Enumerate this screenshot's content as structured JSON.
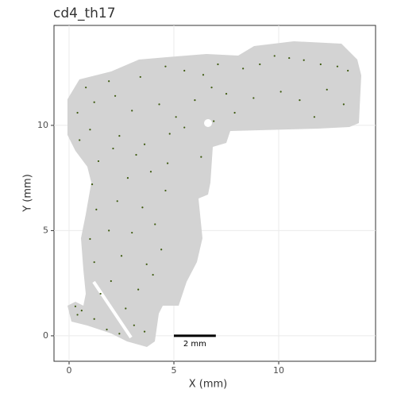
{
  "chart_data": {
    "type": "scatter",
    "title": "cd4_th17",
    "x_label": "X (mm)",
    "y_label": "Y (mm)",
    "xlim": [
      -0.72,
      14.62
    ],
    "ylim": [
      -1.21,
      14.75
    ],
    "xticks": [
      0,
      5,
      10
    ],
    "yticks": [
      0,
      5,
      10
    ],
    "grid": true,
    "scale_bar": {
      "label": "2 mm",
      "x": [
        5,
        7
      ],
      "y": 0
    },
    "series": [
      {
        "color": "#3d5a0f",
        "x": [
          0.3,
          0.6,
          0.4,
          1.2,
          1.8,
          2.4,
          3.1,
          3.6,
          2.7,
          1.5,
          2.0,
          3.3,
          4.0,
          1.2,
          2.5,
          3.7,
          4.4,
          1.0,
          1.9,
          3.0,
          4.1,
          1.3,
          2.3,
          3.5,
          1.1,
          2.8,
          3.9,
          4.6,
          1.4,
          2.1,
          3.2,
          4.7,
          0.5,
          1.0,
          2.4,
          3.6,
          4.8,
          5.5,
          6.3,
          0.4,
          1.2,
          2.2,
          3.0,
          4.3,
          5.1,
          6.0,
          0.8,
          1.9,
          3.4,
          4.6,
          5.5,
          6.4,
          7.1,
          6.8,
          7.5,
          8.3,
          9.1,
          9.8,
          10.5,
          11.2,
          12.0,
          12.8,
          13.3,
          10.1,
          11.0,
          12.3,
          13.1,
          8.8,
          7.9,
          11.7,
          6.9
        ],
        "y": [
          1.4,
          1.2,
          1.0,
          0.8,
          0.3,
          0.1,
          0.5,
          0.2,
          1.3,
          2.0,
          2.6,
          2.2,
          2.9,
          3.5,
          3.8,
          3.4,
          4.1,
          4.6,
          5.0,
          4.9,
          5.3,
          6.0,
          6.4,
          6.1,
          7.2,
          7.5,
          7.8,
          6.9,
          8.3,
          8.9,
          8.6,
          8.2,
          9.3,
          9.8,
          9.5,
          9.1,
          9.6,
          9.9,
          8.5,
          10.6,
          11.1,
          11.4,
          10.7,
          11.0,
          10.4,
          11.2,
          11.8,
          12.1,
          12.3,
          12.8,
          12.6,
          12.4,
          12.9,
          11.8,
          11.5,
          12.7,
          12.9,
          13.3,
          13.2,
          13.1,
          12.9,
          12.8,
          12.6,
          11.6,
          11.2,
          11.7,
          11.0,
          11.3,
          10.6,
          10.4,
          10.2
        ]
      }
    ]
  }
}
